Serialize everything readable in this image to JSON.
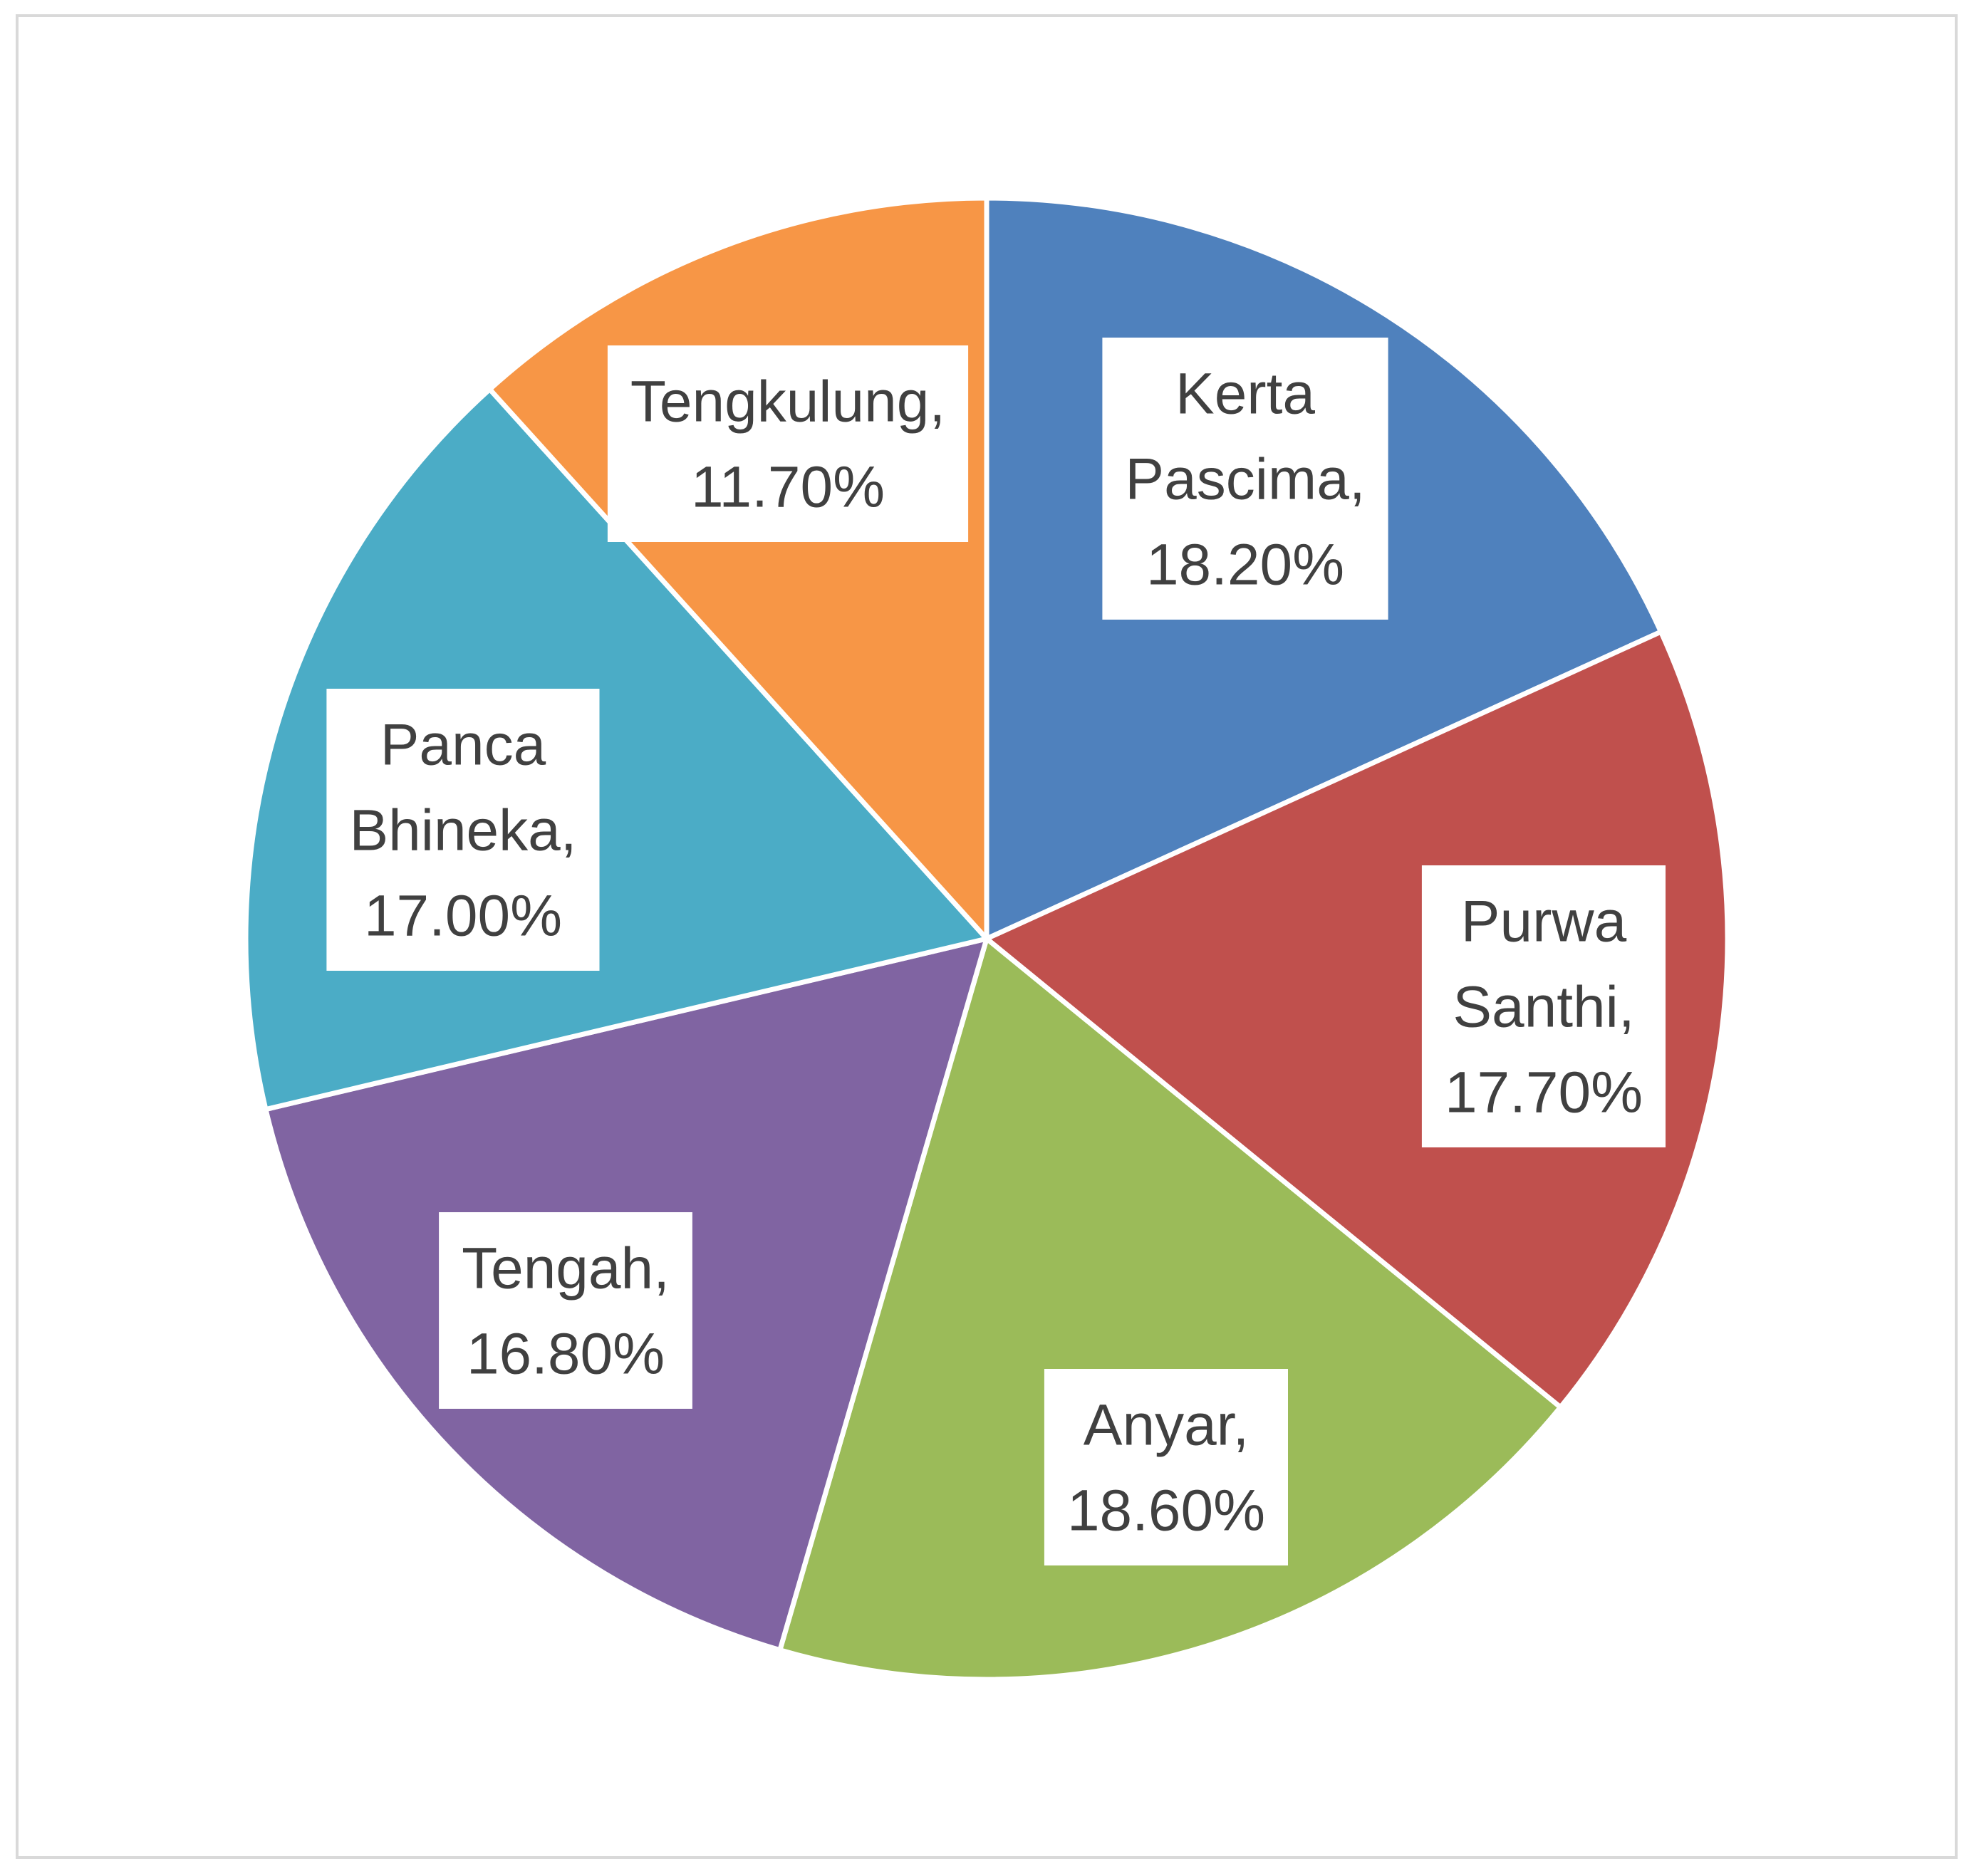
{
  "chart_data": {
    "type": "pie",
    "title": "",
    "start_angle_deg": 0,
    "direction": "clockwise",
    "legend": "none",
    "slices": [
      {
        "label_lines": [
          "Kerta",
          "Pascima,",
          "18.20%"
        ],
        "name": "Kerta Pascima",
        "value": 18.2,
        "color": "#4F81BD"
      },
      {
        "label_lines": [
          "Purwa",
          "Santhi,",
          "17.70%"
        ],
        "name": "Purwa Santhi",
        "value": 17.7,
        "color": "#C0504D"
      },
      {
        "label_lines": [
          "Anyar,",
          "18.60%"
        ],
        "name": "Anyar",
        "value": 18.6,
        "color": "#9BBB59"
      },
      {
        "label_lines": [
          "Tengah,",
          "16.80%"
        ],
        "name": "Tengah",
        "value": 16.8,
        "color": "#8064A2"
      },
      {
        "label_lines": [
          "Panca",
          "Bhineka,",
          "17.00%"
        ],
        "name": "Panca Bhineka",
        "value": 17.0,
        "color": "#4BACC6"
      },
      {
        "label_lines": [
          "Tengkulung,",
          "11.70%"
        ],
        "name": "Tengkulung",
        "value": 11.7,
        "color": "#F79646"
      }
    ]
  }
}
